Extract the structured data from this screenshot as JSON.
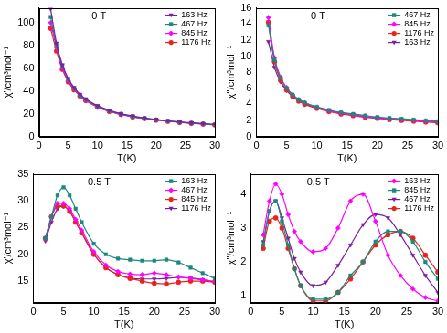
{
  "chart_data": [
    {
      "type": "line",
      "annotation": "0 T",
      "x_label": "T(K)",
      "y_label": "χ'/cm³mol⁻¹",
      "x": [
        2,
        3,
        4,
        5,
        6,
        7,
        8,
        10,
        12,
        14,
        16,
        18,
        20,
        22,
        24,
        26,
        28,
        30
      ],
      "xlim": [
        0,
        30
      ],
      "xticks": [
        0,
        5,
        10,
        15,
        20,
        25,
        30
      ],
      "ylim": [
        0,
        113
      ],
      "yticks": [
        0,
        20,
        40,
        60,
        80,
        100
      ],
      "grid": false,
      "legend": "upper right",
      "series": [
        {
          "name": "163 Hz",
          "color": "#7b1fa2",
          "marker": "triangle-down",
          "line_style": "solid",
          "values": [
            112,
            82,
            63,
            51,
            43,
            37,
            33,
            27,
            23,
            20,
            18,
            16.3,
            15,
            13.8,
            12.8,
            12,
            11.3,
            10.6
          ]
        },
        {
          "name": "467 Hz",
          "color": "#1a8a7a",
          "marker": "square",
          "line_style": "solid",
          "values": [
            105,
            80,
            62,
            50,
            42.5,
            36.5,
            32.5,
            26.5,
            22.5,
            19.7,
            17.6,
            16,
            14.7,
            13.6,
            12.6,
            11.8,
            11.1,
            10.4
          ]
        },
        {
          "name": "845 Hz",
          "color": "#ff00ff",
          "marker": "diamond",
          "line_style": "solid",
          "values": [
            100,
            78,
            60,
            49,
            42,
            36,
            32,
            26,
            22.2,
            19.5,
            17.4,
            15.8,
            14.5,
            13.4,
            12.5,
            11.7,
            11,
            10.3
          ]
        },
        {
          "name": "1176 Hz",
          "color": "#e8231e",
          "marker": "circle",
          "line_style": "solid",
          "values": [
            95,
            75,
            59,
            48,
            41,
            35.5,
            31.5,
            25.8,
            22,
            19.3,
            17.2,
            15.7,
            14.4,
            13.3,
            12.4,
            11.6,
            10.9,
            10.2
          ]
        }
      ]
    },
    {
      "type": "line",
      "annotation": "0 T",
      "x_label": "T(K)",
      "y_label": "χ''/cm³mol⁻¹",
      "x": [
        2,
        3,
        4,
        5,
        6,
        7,
        8,
        10,
        12,
        14,
        16,
        18,
        20,
        22,
        24,
        26,
        28,
        30
      ],
      "xlim": [
        0,
        30
      ],
      "xticks": [
        0,
        5,
        10,
        15,
        20,
        25,
        30
      ],
      "ylim": [
        0,
        16
      ],
      "yticks": [
        0,
        2,
        4,
        6,
        8,
        10,
        12,
        14,
        16
      ],
      "grid": false,
      "legend": "upper right",
      "series": [
        {
          "name": "467 Hz",
          "color": "#1a8a7a",
          "marker": "square",
          "line_style": "solid",
          "values": [
            13.8,
            9.5,
            7.3,
            6,
            5.2,
            4.6,
            4.2,
            3.7,
            3.3,
            3,
            2.8,
            2.6,
            2.4,
            2.3,
            2.2,
            2.1,
            2,
            1.9
          ]
        },
        {
          "name": "845 Hz",
          "color": "#ff00ff",
          "marker": "diamond",
          "line_style": "solid",
          "values": [
            14.8,
            9.8,
            7.4,
            6.1,
            5.2,
            4.6,
            4.2,
            3.6,
            3.2,
            2.9,
            2.7,
            2.5,
            2.3,
            2.2,
            2.1,
            2,
            1.9,
            1.8
          ]
        },
        {
          "name": "1176 Hz",
          "color": "#e8231e",
          "marker": "circle",
          "line_style": "solid",
          "values": [
            14.2,
            9.3,
            7,
            5.8,
            5,
            4.4,
            4,
            3.5,
            3.1,
            2.8,
            2.6,
            2.4,
            2.25,
            2.1,
            2,
            1.9,
            1.8,
            1.7
          ]
        },
        {
          "name": "163 Hz",
          "color": "#7b1fa2",
          "marker": "triangle-down",
          "line_style": "solid",
          "values": [
            11.8,
            8.6,
            6.8,
            5.7,
            5,
            4.5,
            4.1,
            3.6,
            3.2,
            2.9,
            2.7,
            2.5,
            2.35,
            2.2,
            2.1,
            2,
            1.9,
            1.8
          ]
        }
      ]
    },
    {
      "type": "line",
      "annotation": "0.5 T",
      "x_label": "T(K)",
      "y_label": "χ'/cm³mol⁻¹",
      "x": [
        2,
        3,
        4,
        5,
        6,
        7,
        8,
        10,
        12,
        14,
        16,
        18,
        20,
        22,
        24,
        26,
        28,
        30
      ],
      "xlim": [
        0,
        30
      ],
      "xticks": [
        0,
        5,
        10,
        15,
        20,
        25,
        30
      ],
      "ylim": [
        11,
        35
      ],
      "yticks": [
        15,
        20,
        25,
        30,
        35
      ],
      "grid": false,
      "legend": "upper right",
      "series": [
        {
          "name": "163 Hz",
          "color": "#1a8a7a",
          "marker": "square",
          "line_style": "solid",
          "values": [
            23,
            27,
            31,
            32.5,
            31,
            28.5,
            26,
            22,
            20,
            19.2,
            19,
            18.8,
            18.8,
            19,
            18.5,
            17.5,
            16.5,
            15.5
          ]
        },
        {
          "name": "467 Hz",
          "color": "#ff00ff",
          "marker": "diamond",
          "line_style": "solid",
          "values": [
            23,
            27,
            29.5,
            29.5,
            28.5,
            26.5,
            24.5,
            20.5,
            18,
            16.8,
            16.3,
            16.2,
            16.5,
            16.2,
            15.8,
            15.5,
            15.2,
            15
          ]
        },
        {
          "name": "845 Hz",
          "color": "#e8231e",
          "marker": "circle",
          "line_style": "solid",
          "values": [
            23,
            27,
            29,
            29,
            28,
            26,
            24,
            20,
            17.5,
            16.2,
            15.5,
            15,
            14.6,
            14.5,
            14.8,
            15,
            15,
            14.8
          ]
        },
        {
          "name": "1176 Hz",
          "color": "#7b1fa2",
          "marker": "triangle-down",
          "line_style": "solid",
          "values": [
            22.5,
            26,
            28.5,
            29,
            28,
            26,
            24,
            20,
            17.5,
            16.2,
            15.6,
            15.4,
            15.4,
            15.5,
            15.7,
            15.6,
            15.3,
            14.8
          ]
        }
      ]
    },
    {
      "type": "line",
      "annotation": "0.5 T",
      "x_label": "T(K)",
      "y_label": "χ''/cm³mol⁻¹",
      "x": [
        2,
        3,
        4,
        5,
        6,
        7,
        8,
        10,
        12,
        14,
        16,
        18,
        20,
        22,
        24,
        26,
        28,
        30
      ],
      "xlim": [
        0,
        30
      ],
      "xticks": [
        0,
        5,
        10,
        15,
        20,
        25,
        30
      ],
      "ylim": [
        0.8,
        4.6
      ],
      "yticks": [
        1,
        2,
        3,
        4
      ],
      "grid": false,
      "legend": "upper right",
      "series": [
        {
          "name": "163 Hz",
          "color": "#ff00ff",
          "marker": "diamond",
          "line_style": "solid",
          "values": [
            2.8,
            3.8,
            4.3,
            4,
            3.4,
            2.9,
            2.6,
            2.3,
            2.4,
            3,
            3.8,
            4,
            3.2,
            2.2,
            1.6,
            1.2,
            0.95,
            0.85
          ]
        },
        {
          "name": "845 Hz",
          "color": "#1a8a7a",
          "marker": "square",
          "line_style": "solid",
          "values": [
            2.5,
            3.5,
            3.8,
            3.2,
            2.5,
            1.8,
            1.3,
            0.9,
            0.9,
            1.1,
            1.6,
            2,
            2.6,
            2.9,
            2.9,
            2.6,
            2,
            1.5
          ]
        },
        {
          "name": "467 Hz",
          "color": "#7b1fa2",
          "marker": "triangle-down",
          "line_style": "solid",
          "values": [
            2.6,
            3.5,
            3.8,
            3.3,
            2.7,
            2.1,
            1.7,
            1.3,
            1.4,
            1.9,
            2.5,
            3.1,
            3.4,
            3.3,
            2.8,
            2.2,
            1.6,
            1.1
          ]
        },
        {
          "name": "1176 Hz",
          "color": "#e8231e",
          "marker": "circle",
          "line_style": "solid",
          "values": [
            2.4,
            3.2,
            3.3,
            3,
            2.4,
            1.8,
            1.3,
            0.85,
            0.85,
            1.1,
            1.5,
            2,
            2.5,
            2.8,
            2.9,
            2.7,
            2.2,
            1.7
          ]
        }
      ]
    }
  ]
}
